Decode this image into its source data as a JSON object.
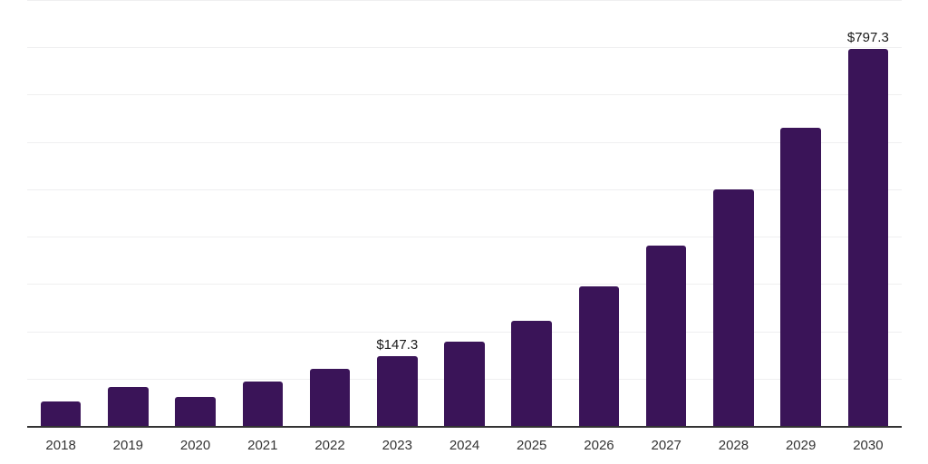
{
  "chart_data": {
    "type": "bar",
    "title": "",
    "xlabel": "",
    "ylabel": "",
    "categories": [
      "2018",
      "2019",
      "2020",
      "2021",
      "2022",
      "2023",
      "2024",
      "2025",
      "2026",
      "2027",
      "2028",
      "2029",
      "2030"
    ],
    "values": [
      52.3,
      82.9,
      60.7,
      93.8,
      121.2,
      147.3,
      177.5,
      221.6,
      295.5,
      381.7,
      499.8,
      630.0,
      797.3
    ],
    "data_labels": [
      {
        "category": "2023",
        "text": "$147.3"
      },
      {
        "category": "2030",
        "text": "$797.3"
      }
    ],
    "ylim": [
      0,
      900
    ],
    "grid_step": 100,
    "grid": "horizontal-only",
    "y_axis_tick_labels": "none",
    "legend": "none",
    "colors": {
      "bar": "#3a1458",
      "gridline": "#efeff0",
      "axis_line": "#333333",
      "tick_label": "#333333",
      "value_label": "#1a1a1a",
      "background": "#ffffff"
    }
  }
}
